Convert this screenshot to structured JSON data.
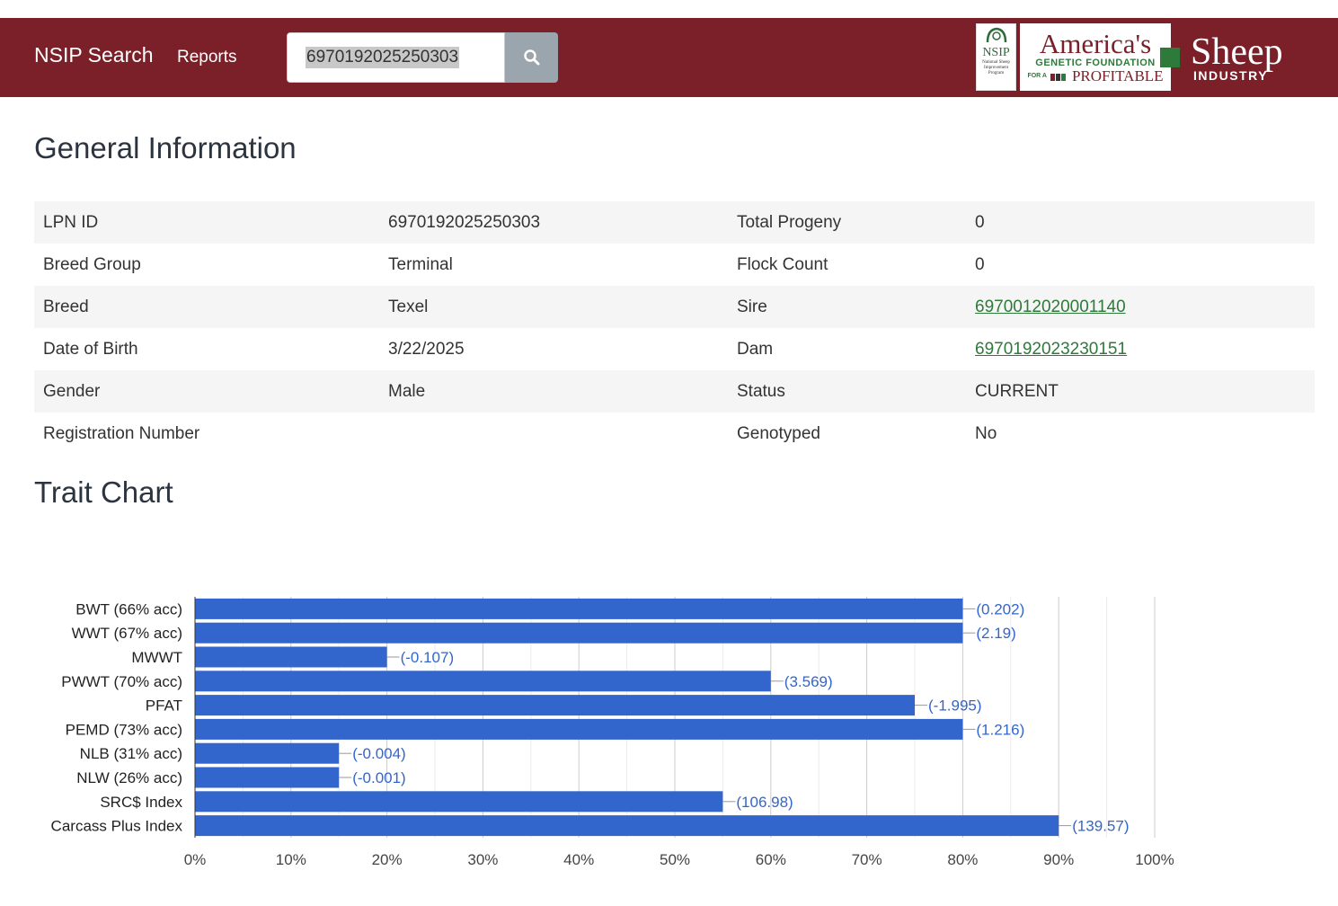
{
  "nav": {
    "brand": "NSIP Search",
    "reports": "Reports",
    "search_value": "6970192025250303"
  },
  "logos": {
    "nsip": "NSIP",
    "nsip_sub": "National Sheep Improvement Program",
    "america_title": "America's",
    "america_sub": "GENETIC FOUNDATION",
    "america_for": "FOR A",
    "america_profitable": "PROFITABLE",
    "sheep_title": "Sheep",
    "sheep_sub": "INDUSTRY"
  },
  "general": {
    "title": "General Information",
    "rows": [
      {
        "l1": "LPN ID",
        "v1": "6970192025250303",
        "l2": "Total Progeny",
        "v2": "0"
      },
      {
        "l1": "Breed Group",
        "v1": "Terminal",
        "l2": "Flock Count",
        "v2": "0"
      },
      {
        "l1": "Breed",
        "v1": "Texel",
        "l2": "Sire",
        "v2": "6970012020001140"
      },
      {
        "l1": "Date of Birth",
        "v1": "3/22/2025",
        "l2": "Dam",
        "v2": "6970192023230151"
      },
      {
        "l1": "Gender",
        "v1": "Male",
        "l2": "Status",
        "v2": "CURRENT"
      },
      {
        "l1": "Registration Number",
        "v1": "",
        "l2": "Genotyped",
        "v2": "No"
      }
    ]
  },
  "trait": {
    "title": "Trait Chart"
  },
  "chart_data": {
    "type": "bar",
    "orientation": "horizontal",
    "categories": [
      "BWT (66% acc)",
      "WWT (67% acc)",
      "MWWT",
      "PWWT (70% acc)",
      "PFAT",
      "PEMD (73% acc)",
      "NLB (31% acc)",
      "NLW (26% acc)",
      "SRC$ Index",
      "Carcass Plus Index"
    ],
    "values": [
      80,
      80,
      20,
      60,
      75,
      80,
      15,
      15,
      55,
      90
    ],
    "labels": [
      "(0.202)",
      "(2.19)",
      "(-0.107)",
      "(3.569)",
      "(-1.995)",
      "(1.216)",
      "(-0.004)",
      "(-0.001)",
      "(106.98)",
      "(139.57)"
    ],
    "xlim": [
      0,
      100
    ],
    "xticks": [
      "0%",
      "10%",
      "20%",
      "30%",
      "40%",
      "50%",
      "60%",
      "70%",
      "80%",
      "90%",
      "100%"
    ],
    "bar_color": "#3366cc",
    "label_color": "#3366cc",
    "grid": true
  }
}
